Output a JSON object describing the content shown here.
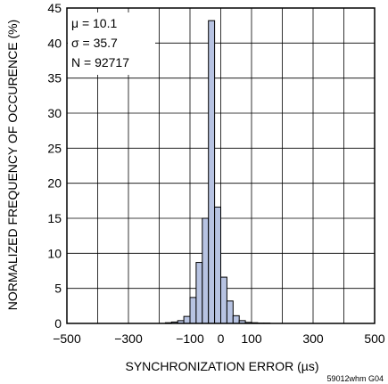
{
  "chart_data": {
    "type": "bar",
    "title": "",
    "xlabel": "SYNCHRONIZATION ERROR (µs)",
    "ylabel": "NORMALIZED FREQUENCY OF OCCURENCE (%)",
    "xlim": [
      -500,
      500
    ],
    "ylim": [
      0,
      45
    ],
    "x_ticks": [
      -500,
      -400,
      -300,
      -200,
      -100,
      0,
      100,
      200,
      300,
      400,
      500
    ],
    "x_tick_labels": [
      "−500",
      "",
      "−300",
      "",
      "−100",
      "0",
      "100",
      "",
      "300",
      "",
      "500"
    ],
    "y_ticks": [
      0,
      5,
      10,
      15,
      20,
      25,
      30,
      35,
      40,
      45
    ],
    "y_tick_labels": [
      "0",
      "5",
      "10",
      "15",
      "20",
      "25",
      "30",
      "35",
      "40",
      "45"
    ],
    "grid": true,
    "bar_color": "#b7c3e2",
    "bar_edge_color": "#000000",
    "bin_width": 20,
    "bin_starts": [
      -180,
      -160,
      -140,
      -120,
      -100,
      -80,
      -60,
      -40,
      -20,
      0,
      20,
      40,
      60,
      80,
      100,
      120,
      140
    ],
    "values": [
      0.1,
      0.2,
      0.4,
      1.0,
      3.7,
      8.7,
      15.0,
      43.2,
      16.6,
      6.6,
      3.2,
      1.1,
      0.4,
      0.15,
      0.1,
      0.05,
      0.05
    ],
    "annotations": [
      "μ = 10.1",
      "σ = 35.7",
      "N = 92717"
    ],
    "figure_id": "59012whm G04"
  }
}
